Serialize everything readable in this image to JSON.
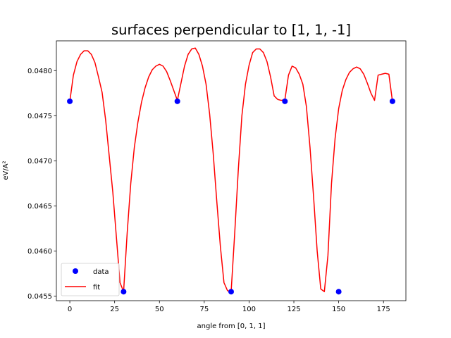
{
  "chart_data": {
    "type": "line",
    "title": "surfaces perpendicular to [1, 1, -1]",
    "xlabel": "angle from [0, 1, 1]",
    "ylabel": "eV/A²",
    "xlim": [
      -7.5,
      187.5
    ],
    "ylim": [
      0.04545,
      0.04833
    ],
    "xticks": [
      0,
      25,
      50,
      75,
      100,
      125,
      150,
      175
    ],
    "yticks": [
      0.0455,
      0.046,
      0.0465,
      0.047,
      0.0475,
      0.048
    ],
    "ytick_labels": [
      "0.0455",
      "0.0460",
      "0.0465",
      "0.0470",
      "0.0475",
      "0.0480"
    ],
    "grid": false,
    "legend_position": "lower-left",
    "series": [
      {
        "name": "data",
        "style": "markers",
        "color": "#0000ff",
        "x": [
          0,
          30,
          60,
          90,
          120,
          150,
          180
        ],
        "y": [
          0.04766,
          0.04555,
          0.04766,
          0.04555,
          0.04766,
          0.04555,
          0.04766
        ]
      },
      {
        "name": "fit",
        "style": "line",
        "color": "#ff0000",
        "x": [
          0,
          2,
          4,
          6,
          8,
          10,
          12,
          14,
          16,
          18,
          20,
          22,
          24,
          26,
          28,
          30,
          32,
          34,
          36,
          38,
          40,
          42,
          44,
          46,
          48,
          50,
          52,
          54,
          56,
          58,
          60,
          62,
          64,
          66,
          68,
          70,
          72,
          74,
          76,
          78,
          80,
          82,
          84,
          86,
          88,
          90,
          92,
          94,
          96,
          98,
          100,
          102,
          104,
          106,
          108,
          110,
          112,
          114,
          116,
          118,
          120,
          122,
          124,
          126,
          128,
          130,
          132,
          134,
          136,
          138,
          140,
          142,
          144,
          146,
          148,
          150,
          152,
          154,
          156,
          158,
          160,
          162,
          164,
          166,
          168,
          170,
          172,
          174,
          176,
          178,
          180
        ],
        "y": [
          0.04766,
          0.04795,
          0.0481,
          0.04818,
          0.04822,
          0.04822,
          0.04818,
          0.04809,
          0.04793,
          0.04776,
          0.04745,
          0.04705,
          0.04665,
          0.04615,
          0.04565,
          0.04555,
          0.0462,
          0.04675,
          0.04715,
          0.04743,
          0.04765,
          0.04781,
          0.04793,
          0.04801,
          0.04805,
          0.04807,
          0.04805,
          0.04799,
          0.04789,
          0.04778,
          0.04767,
          0.04786,
          0.04805,
          0.04818,
          0.04824,
          0.04825,
          0.04818,
          0.04805,
          0.04785,
          0.04752,
          0.04708,
          0.04655,
          0.04605,
          0.04565,
          0.04556,
          0.04555,
          0.0462,
          0.0469,
          0.0475,
          0.04785,
          0.04806,
          0.0482,
          0.04824,
          0.04824,
          0.0482,
          0.0481,
          0.04793,
          0.04772,
          0.04768,
          0.04767,
          0.04768,
          0.04795,
          0.04805,
          0.04803,
          0.04796,
          0.04785,
          0.0476,
          0.04715,
          0.0466,
          0.046,
          0.04558,
          0.04555,
          0.04595,
          0.04675,
          0.04725,
          0.04758,
          0.04778,
          0.0479,
          0.04798,
          0.04802,
          0.04804,
          0.04802,
          0.04796,
          0.04786,
          0.04775,
          0.04767,
          0.04795,
          0.04796,
          0.04797,
          0.04796,
          0.04766
        ]
      }
    ]
  }
}
